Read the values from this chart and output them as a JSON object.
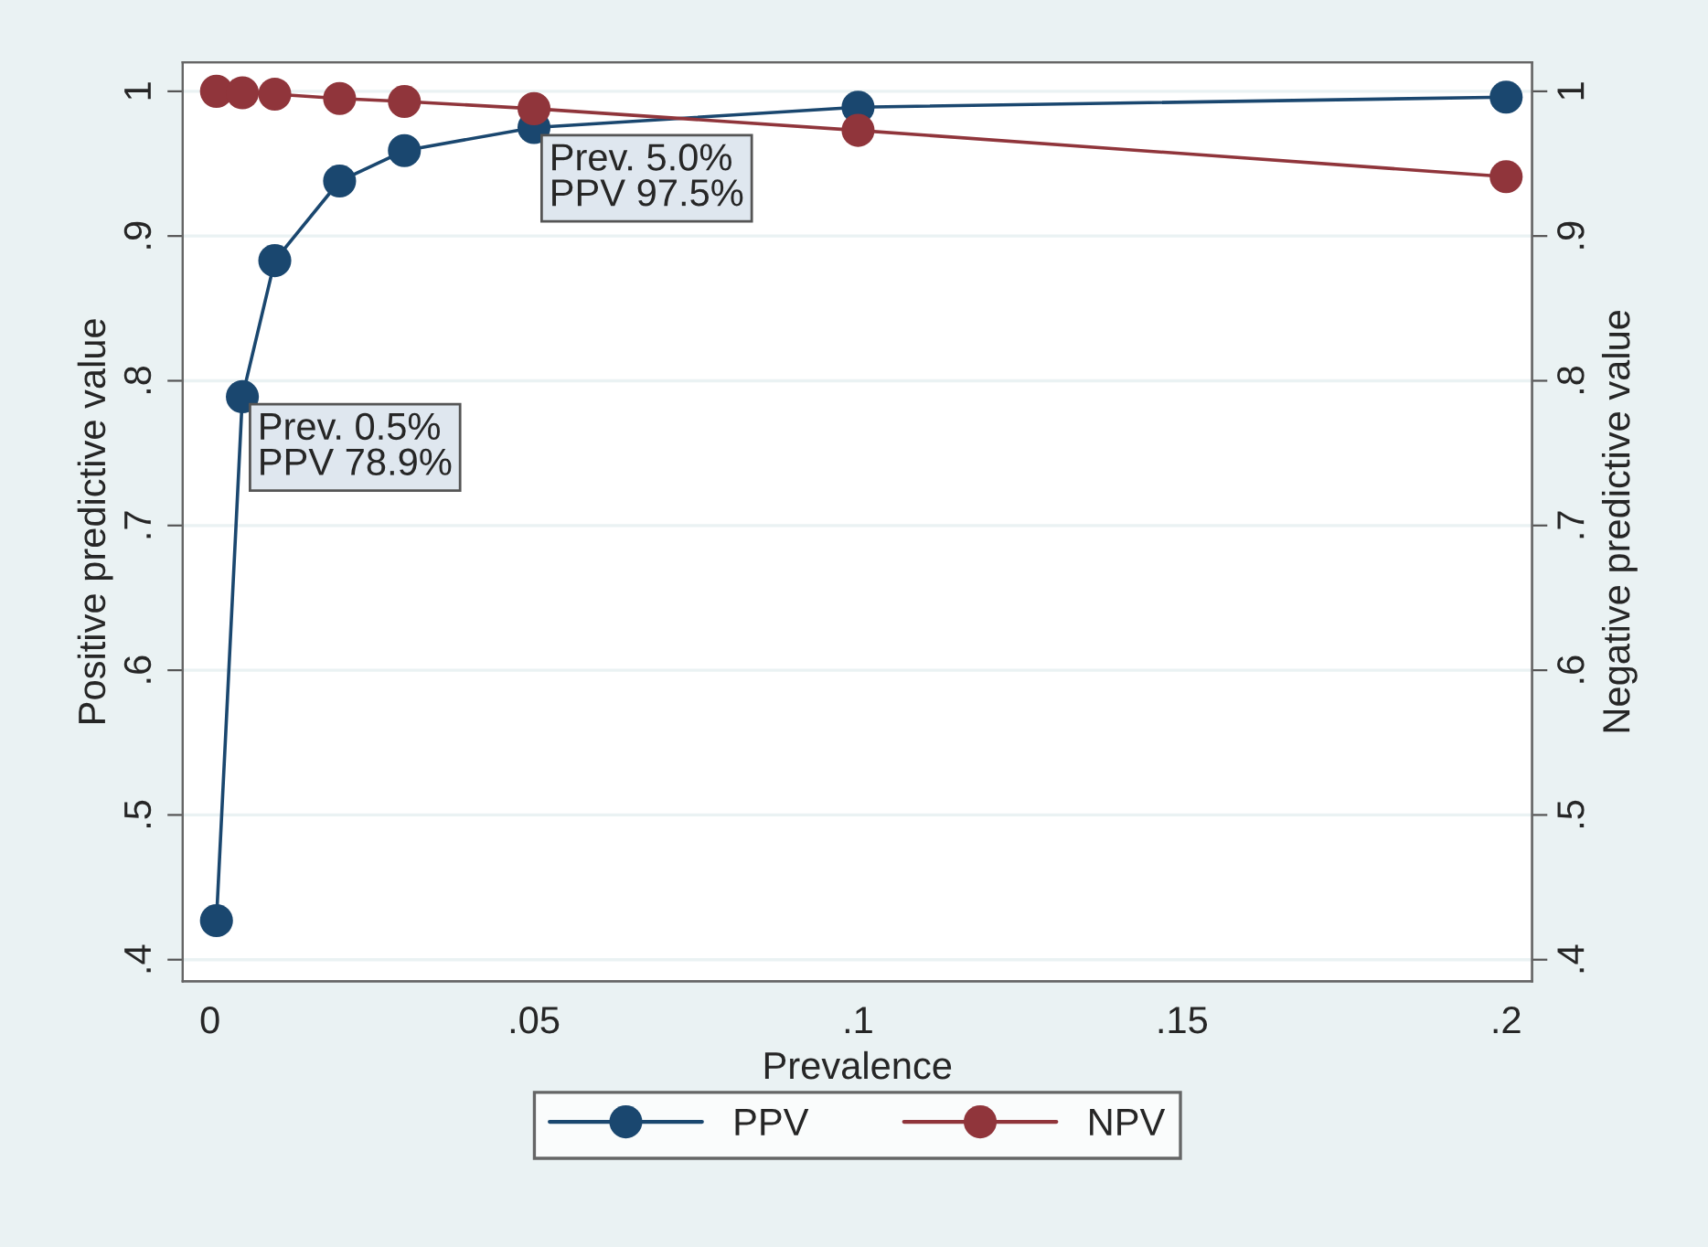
{
  "chart_data": {
    "type": "line",
    "xlabel": "Prevalence",
    "ylabel": "Positive predictive value",
    "y2label": "Negative predictive value",
    "x": [
      0.001,
      0.005,
      0.01,
      0.02,
      0.03,
      0.05,
      0.1,
      0.2
    ],
    "series": [
      {
        "name": "PPV",
        "color": "#1a476f",
        "values": [
          0.427,
          0.789,
          0.883,
          0.938,
          0.959,
          0.975,
          0.989,
          0.996
        ]
      },
      {
        "name": "NPV",
        "color": "#90353b",
        "axis": "y2",
        "values": [
          1.0,
          0.999,
          0.998,
          0.995,
          0.993,
          0.988,
          0.973,
          0.941
        ]
      }
    ],
    "xlim": [
      -0.0042,
      0.204
    ],
    "xticks": [
      {
        "value": 0,
        "label": "0"
      },
      {
        "value": 0.05,
        "label": ".05"
      },
      {
        "value": 0.1,
        "label": ".1"
      },
      {
        "value": 0.15,
        "label": ".15"
      },
      {
        "value": 0.2,
        "label": ".2"
      }
    ],
    "ylim": [
      0.385,
      1.02
    ],
    "yticks": [
      {
        "value": 0.4,
        "label": ".4"
      },
      {
        "value": 0.5,
        "label": ".5"
      },
      {
        "value": 0.6,
        "label": ".6"
      },
      {
        "value": 0.7,
        "label": ".7"
      },
      {
        "value": 0.8,
        "label": ".8"
      },
      {
        "value": 0.9,
        "label": ".9"
      },
      {
        "value": 1,
        "label": "1"
      }
    ],
    "y2lim": [
      0.385,
      1.02
    ],
    "y2ticks": [
      {
        "value": 0.4,
        "label": ".4"
      },
      {
        "value": 0.5,
        "label": ".5"
      },
      {
        "value": 0.6,
        "label": ".6"
      },
      {
        "value": 0.7,
        "label": ".7"
      },
      {
        "value": 0.8,
        "label": ".8"
      },
      {
        "value": 0.9,
        "label": ".9"
      },
      {
        "value": 1,
        "label": "1"
      }
    ],
    "annotations": [
      {
        "text": "Prev. 0.5%\nPPV 78.9%",
        "x": 0.005,
        "y": 0.789
      },
      {
        "text": "Prev. 5.0%\nPPV 97.5%",
        "x": 0.05,
        "y": 0.975
      }
    ],
    "grid": "y",
    "legend": "bottom",
    "marker": "circle",
    "line_style": "solid"
  }
}
